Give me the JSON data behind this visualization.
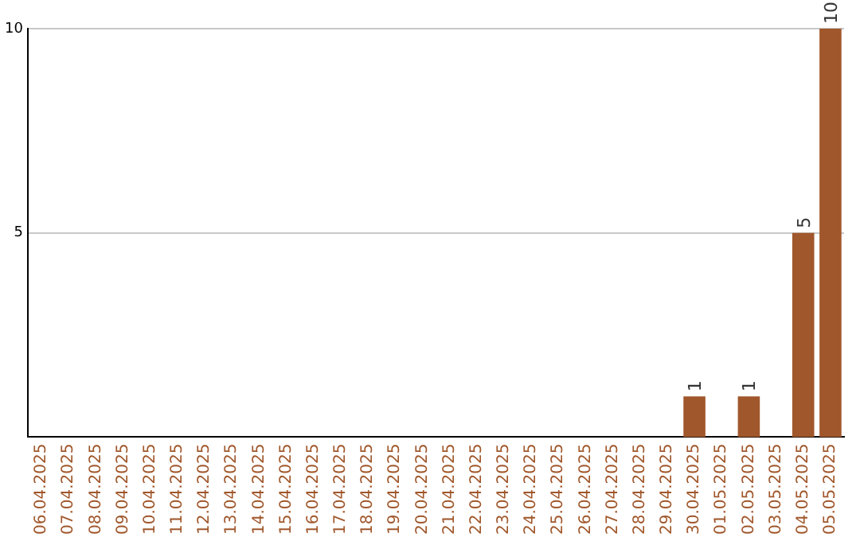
{
  "chart_data": {
    "type": "bar",
    "categories": [
      "06.04.2025",
      "07.04.2025",
      "08.04.2025",
      "09.04.2025",
      "10.04.2025",
      "11.04.2025",
      "12.04.2025",
      "13.04.2025",
      "14.04.2025",
      "15.04.2025",
      "16.04.2025",
      "17.04.2025",
      "18.04.2025",
      "19.04.2025",
      "20.04.2025",
      "21.04.2025",
      "22.04.2025",
      "23.04.2025",
      "24.04.2025",
      "25.04.2025",
      "26.04.2025",
      "27.04.2025",
      "28.04.2025",
      "29.04.2025",
      "30.04.2025",
      "01.05.2025",
      "02.05.2025",
      "03.05.2025",
      "04.05.2025",
      "05.05.2025"
    ],
    "values": [
      0,
      0,
      0,
      0,
      0,
      0,
      0,
      0,
      0,
      0,
      0,
      0,
      0,
      0,
      0,
      0,
      0,
      0,
      0,
      0,
      0,
      0,
      0,
      0,
      1,
      0,
      1,
      0,
      5,
      10
    ],
    "value_labels": [
      null,
      null,
      null,
      null,
      null,
      null,
      null,
      null,
      null,
      null,
      null,
      null,
      null,
      null,
      null,
      null,
      null,
      null,
      null,
      null,
      null,
      null,
      null,
      null,
      "1",
      null,
      "1",
      null,
      "5",
      "10"
    ],
    "color": "#a0572b",
    "ylim": [
      0,
      10
    ],
    "yticks": [
      5,
      10
    ],
    "grid": "y",
    "legend": false
  }
}
